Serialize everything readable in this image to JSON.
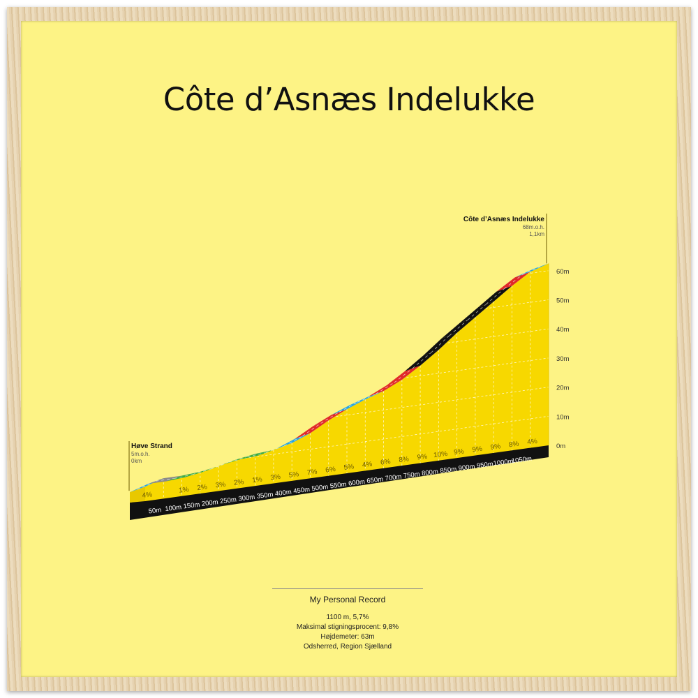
{
  "title": "Côte d’Asnæs Indelukke",
  "chart_data": {
    "type": "area",
    "title": "Côte d’Asnæs Indelukke",
    "start": {
      "name": "Høve Strand",
      "elevation_label": "5m.o.h.",
      "distance_label": "0km",
      "elevation": 5
    },
    "finish": {
      "name": "Côte d’Asnæs Indelukke",
      "elevation_label": "68m.o.h.",
      "distance_label": "1,1km",
      "elevation": 68
    },
    "segment_length_m": 50,
    "gradients": [
      4,
      0,
      1,
      2,
      3,
      2,
      1,
      3,
      5,
      7,
      6,
      5,
      4,
      6,
      8,
      9,
      10,
      9,
      9,
      9,
      8,
      4
    ],
    "gradient_labels": [
      "4%",
      "",
      "1%",
      "2%",
      "3%",
      "2%",
      "1%",
      "3%",
      "5%",
      "7%",
      "6%",
      "5%",
      "4%",
      "6%",
      "8%",
      "9%",
      "10%",
      "9%",
      "9%",
      "9%",
      "8%",
      "4%"
    ],
    "segment_colors": [
      "#2aa6e0",
      "#8a8a8a",
      "#3aaa48",
      "#3aaa48",
      "#3aaa48",
      "#3aaa48",
      "#3aaa48",
      "#3aaa48",
      "#2aa6e0",
      "#e02a2a",
      "#e02a2a",
      "#2aa6e0",
      "#2aa6e0",
      "#e02a2a",
      "#e02a2a",
      "#111111",
      "#111111",
      "#111111",
      "#111111",
      "#111111",
      "#e02a2a",
      "#2aa6e0"
    ],
    "distance_ticks": [
      "50m",
      "100m",
      "150m",
      "200m",
      "250m",
      "300m",
      "350m",
      "400m",
      "450m",
      "500m",
      "550m",
      "600m",
      "650m",
      "700m",
      "750m",
      "800m",
      "850m",
      "900m",
      "950m",
      "1000m",
      "1050m"
    ],
    "y_ticks": [
      "0m",
      "10m",
      "20m",
      "30m",
      "40m",
      "50m",
      "60m"
    ],
    "ylim": [
      0,
      68
    ],
    "xlim": [
      0,
      1100
    ],
    "grid": true,
    "fill_color": "#f7d800"
  },
  "footer": {
    "record": "My Personal Record",
    "lines": [
      "1100 m, 5,7%",
      "Maksimal stigningsprocent: 9,8%",
      "Højdemeter: 63m",
      "Odsherred, Region Sjælland"
    ]
  }
}
